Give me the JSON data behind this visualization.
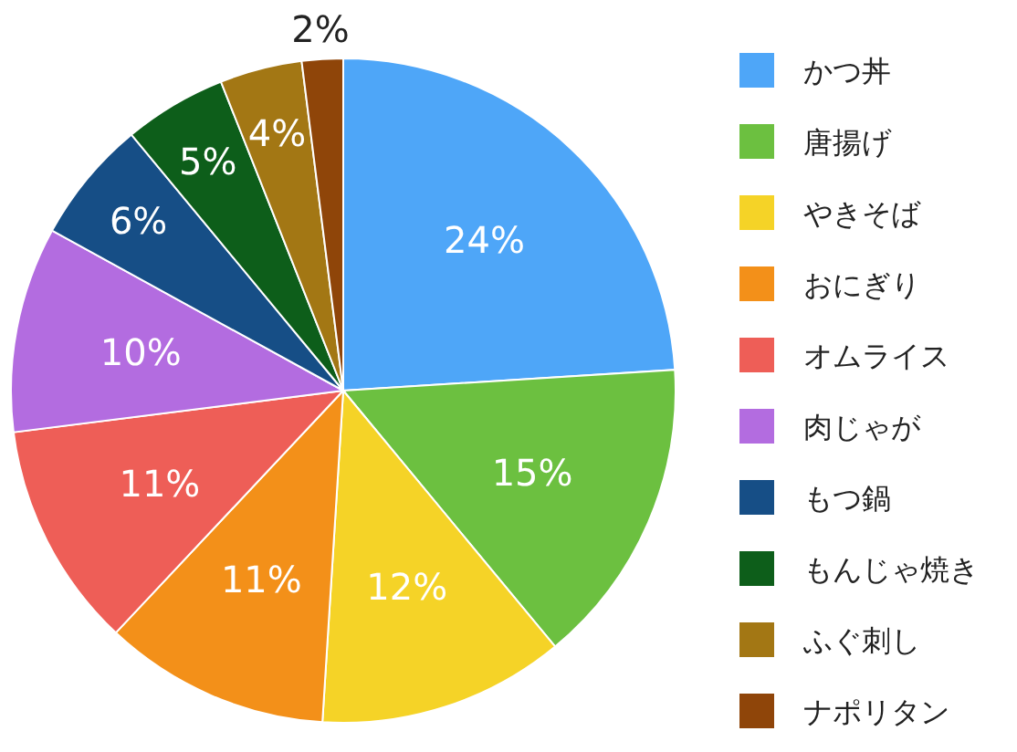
{
  "chart_data": {
    "type": "pie",
    "categories": [
      "かつ丼",
      "唐揚げ",
      "やきそば",
      "おにぎり",
      "オムライス",
      "肉じゃが",
      "もつ鍋",
      "もんじゃ焼き",
      "ふぐ刺し",
      "ナポリタン"
    ],
    "values": [
      24,
      15,
      12,
      11,
      11,
      10,
      6,
      5,
      4,
      2
    ],
    "colors": [
      "#4ea6f8",
      "#6cc040",
      "#f5d327",
      "#f39019",
      "#ee5e57",
      "#b36ce0",
      "#164e86",
      "#0d5e1a",
      "#a37714",
      "#8f4509"
    ],
    "value_labels": [
      "24%",
      "15%",
      "12%",
      "11%",
      "11%",
      "10%",
      "6%",
      "5%",
      "4%",
      "2%"
    ],
    "legend": "right"
  }
}
